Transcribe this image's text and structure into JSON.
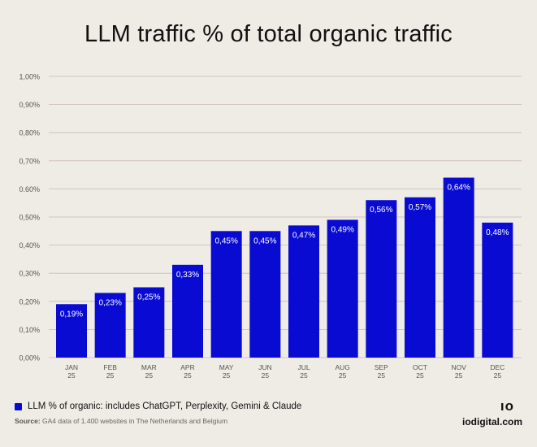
{
  "title": "LLM traffic % of total organic traffic",
  "legend_label": "LLM % of organic: includes ChatGPT, Perplexity, Gemini & Claude",
  "source_label": "Source:",
  "source_text": "GA4 data of 1.400 websites in The Netherlands and Belgium",
  "brand_logo": "ıo",
  "brand_url": "iodigital.com",
  "colors": {
    "bar": "#0a0bd2",
    "background": "#efece6",
    "grid": "#c9b8b4"
  },
  "chart_data": {
    "type": "bar",
    "title": "LLM traffic % of total organic traffic",
    "categories": [
      "JAN 25",
      "FEB 25",
      "MAR 25",
      "APR 25",
      "MAY 25",
      "JUN 25",
      "JUL 25",
      "AUG 25",
      "SEP 25",
      "OCT 25",
      "NOV 25",
      "DEC 25"
    ],
    "category_lines": [
      [
        "JAN",
        "25"
      ],
      [
        "FEB",
        "25"
      ],
      [
        "MAR",
        "25"
      ],
      [
        "APR",
        "25"
      ],
      [
        "MAY",
        "25"
      ],
      [
        "JUN",
        "25"
      ],
      [
        "JUL",
        "25"
      ],
      [
        "AUG",
        "25"
      ],
      [
        "SEP",
        "25"
      ],
      [
        "OCT",
        "25"
      ],
      [
        "NOV",
        "25"
      ],
      [
        "DEC",
        "25"
      ]
    ],
    "series": [
      {
        "name": "LLM % of organic: includes ChatGPT, Perplexity, Gemini & Claude",
        "values": [
          0.19,
          0.23,
          0.25,
          0.33,
          0.45,
          0.45,
          0.47,
          0.49,
          0.56,
          0.57,
          0.64,
          0.48
        ],
        "labels": [
          "0,19%",
          "0,23%",
          "0,25%",
          "0,33%",
          "0,45%",
          "0,45%",
          "0,47%",
          "0,49%",
          "0,56%",
          "0,57%",
          "0,64%",
          "0,48%"
        ]
      }
    ],
    "ylim": [
      0,
      1.0
    ],
    "yticks": [
      0,
      0.1,
      0.2,
      0.3,
      0.4,
      0.5,
      0.6,
      0.7,
      0.8,
      0.9,
      1.0
    ],
    "ytick_labels": [
      "0,00%",
      "0,10%",
      "0,20%",
      "0,30%",
      "0,40%",
      "0,50%",
      "0.60%",
      "0,70%",
      "0,80%",
      "0,90%",
      "1,00%"
    ],
    "xlabel": "",
    "ylabel": "",
    "grid": true,
    "legend_position": "bottom-left"
  }
}
